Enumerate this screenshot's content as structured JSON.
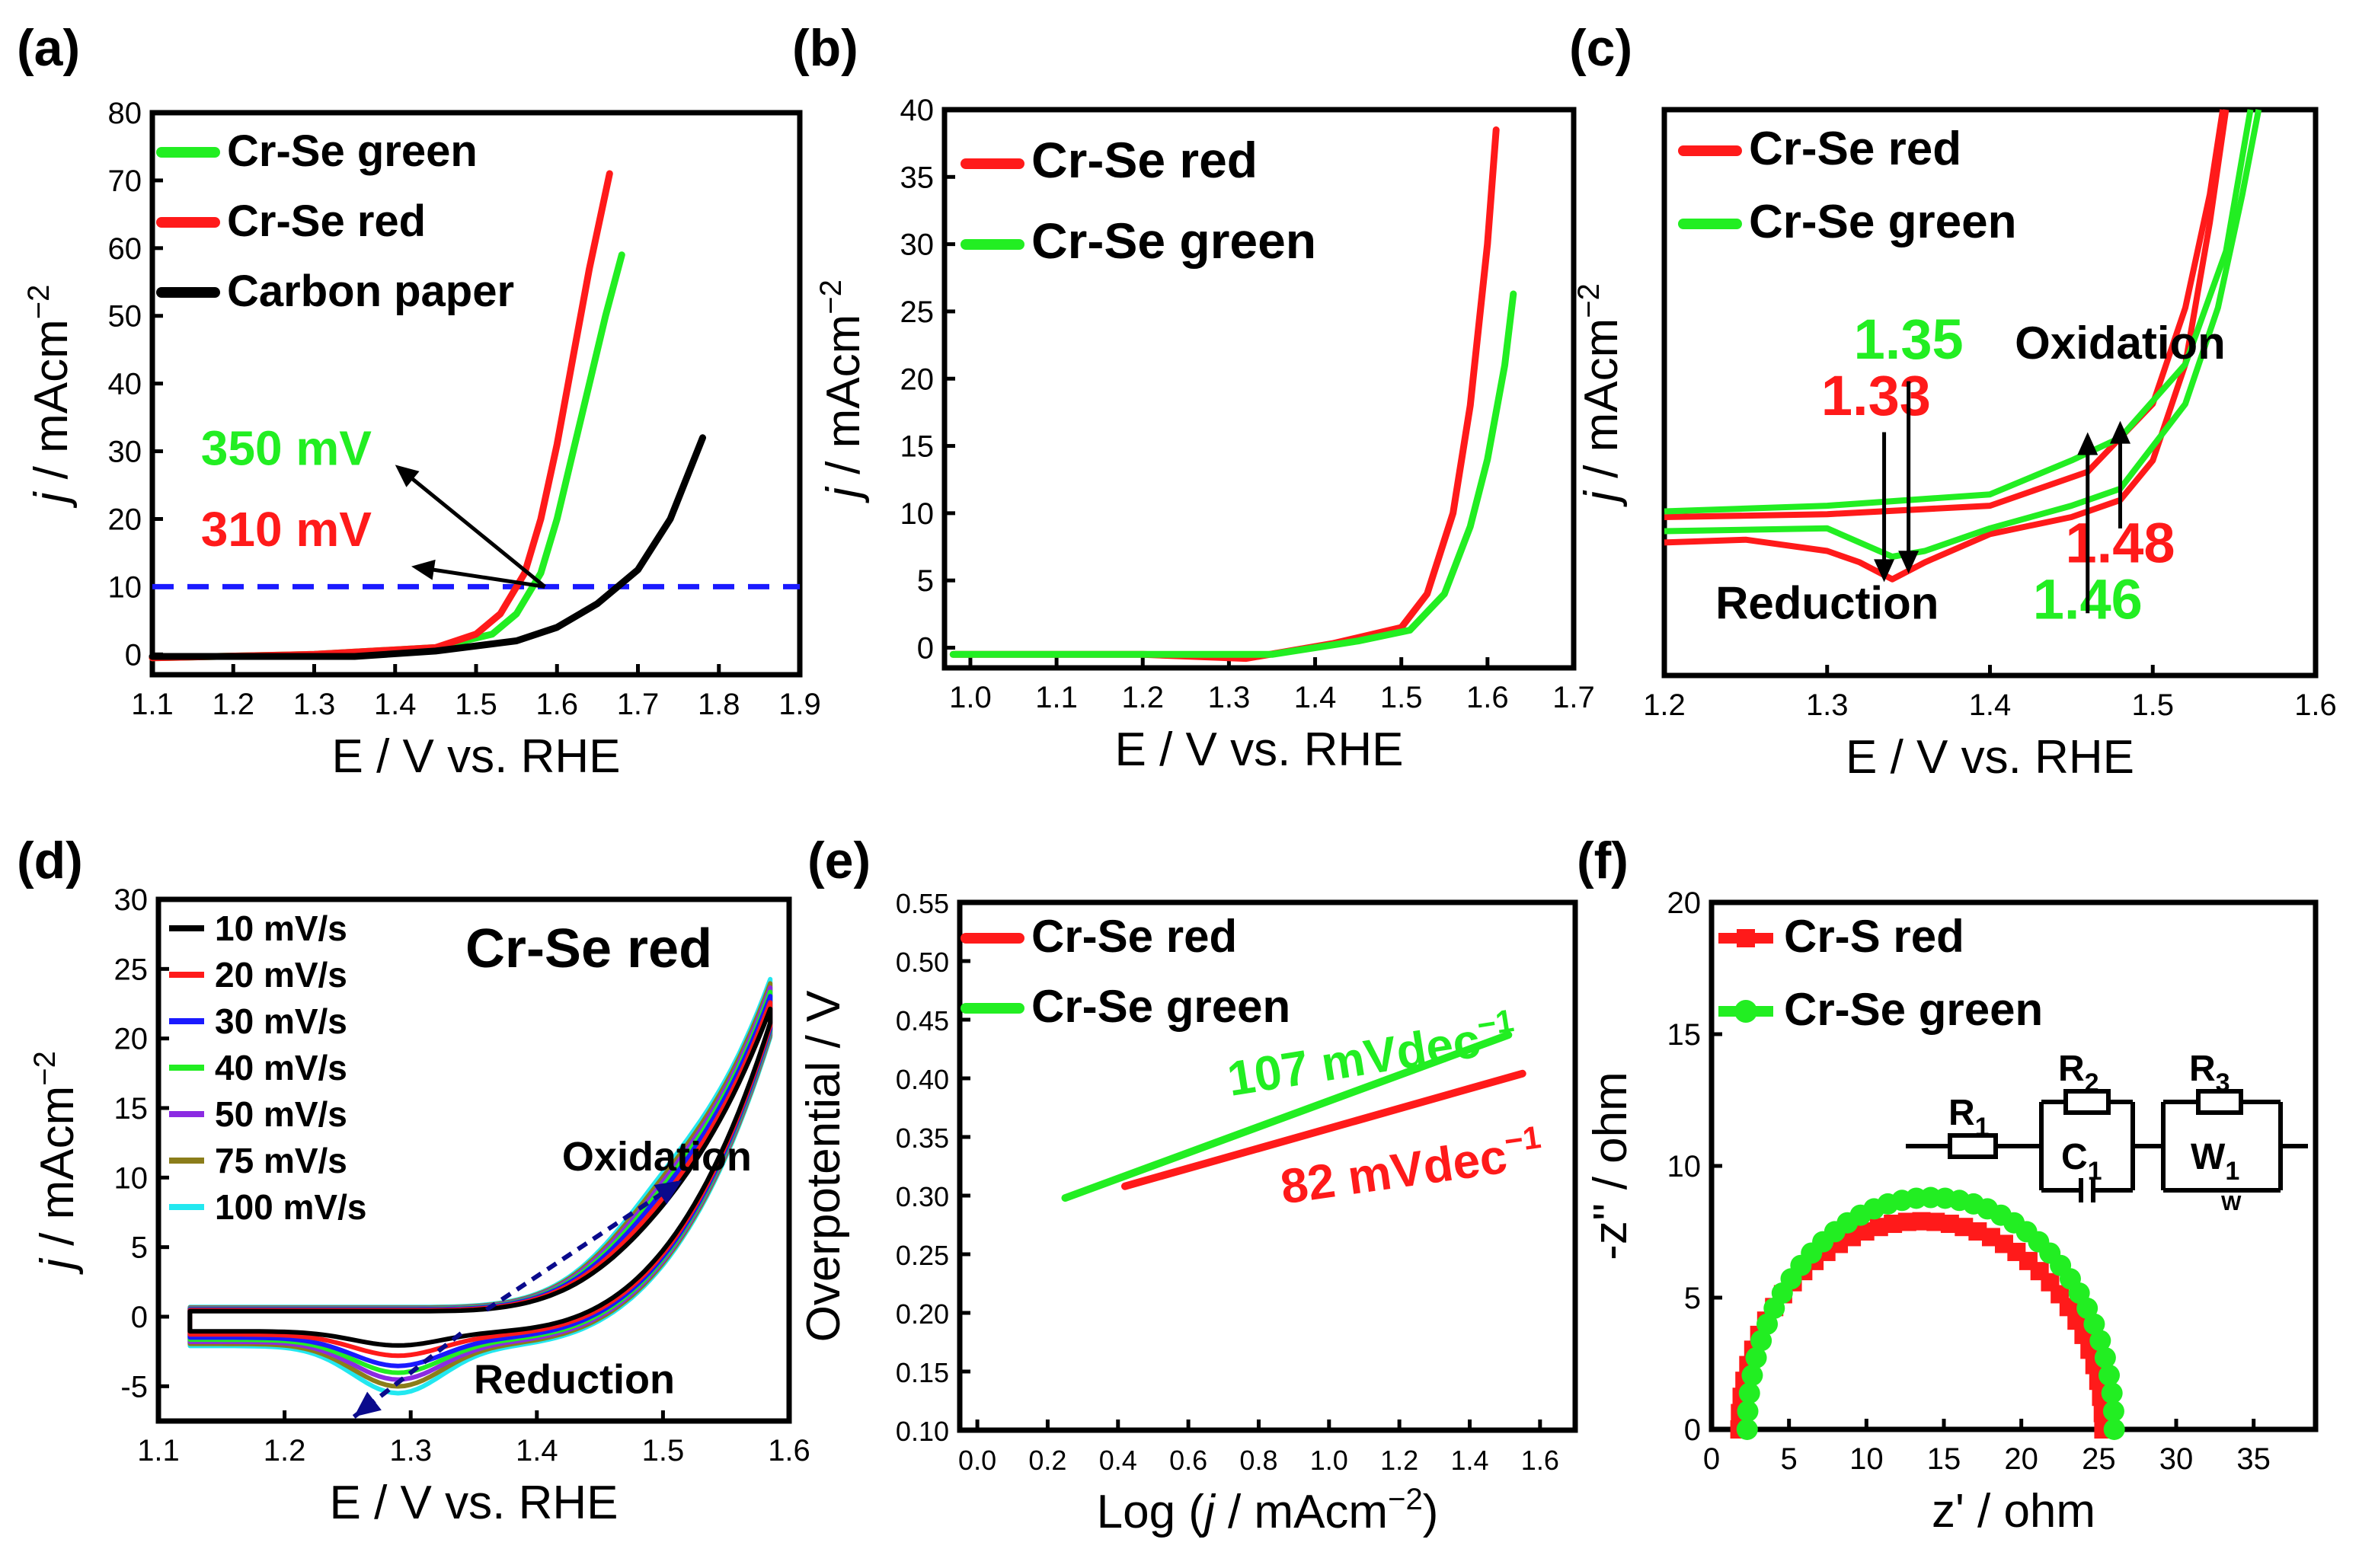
{
  "colors": {
    "red": "#ff1a1a",
    "green": "#22ee22",
    "black": "#000000",
    "blue": "#1a1aff",
    "navy": "#0a0a8c"
  },
  "chart_data": [
    {
      "panel": "(a)",
      "type": "line",
      "xlabel": "E / V vs. RHE",
      "ylabel": "j / mAcm−2",
      "ylabel_italic": "j",
      "ylabel_unit": " / mAcm",
      "ylabel_sup": "−2",
      "xlim": [
        1.1,
        1.9
      ],
      "ylim": [
        -3,
        80
      ],
      "xticks": [
        "1.1",
        "1.2",
        "1.3",
        "1.4",
        "1.5",
        "1.6",
        "1.7",
        "1.8",
        "1.9"
      ],
      "yticks": [
        "0",
        "10",
        "20",
        "30",
        "40",
        "50",
        "60",
        "70",
        "80"
      ],
      "xtick_values": [
        1.1,
        1.2,
        1.3,
        1.4,
        1.5,
        1.6,
        1.7,
        1.8,
        1.9
      ],
      "ytick_values": [
        0,
        10,
        20,
        30,
        40,
        50,
        60,
        70,
        80
      ],
      "legend_position": "top-left",
      "series": [
        {
          "name": "Cr-Se green",
          "color": "#22ee22",
          "x": [
            1.1,
            1.3,
            1.45,
            1.52,
            1.55,
            1.58,
            1.6,
            1.62,
            1.64,
            1.66,
            1.68
          ],
          "y": [
            -0.5,
            0,
            1,
            3,
            6,
            12,
            20,
            30,
            40,
            50,
            59
          ]
        },
        {
          "name": "Cr-Se red",
          "color": "#ff1a1a",
          "x": [
            1.1,
            1.3,
            1.45,
            1.5,
            1.53,
            1.56,
            1.58,
            1.6,
            1.62,
            1.64,
            1.665
          ],
          "y": [
            -0.5,
            0,
            1,
            3,
            6,
            12,
            20,
            31,
            44,
            57,
            71
          ]
        },
        {
          "name": "Carbon paper",
          "color": "#000000",
          "x": [
            1.1,
            1.35,
            1.45,
            1.55,
            1.6,
            1.65,
            1.7,
            1.74,
            1.78
          ],
          "y": [
            -0.3,
            -0.3,
            0.5,
            2,
            4,
            7.5,
            12.5,
            20,
            32
          ]
        }
      ],
      "hline": {
        "y": 10,
        "color": "#1a1aff",
        "style": "dashed"
      },
      "annotations": [
        {
          "text": "350 mV",
          "color": "#22ee22",
          "x": 1.16,
          "y": 28
        },
        {
          "text": "310 mV",
          "color": "#ff1a1a",
          "x": 1.16,
          "y": 16
        }
      ],
      "arrows": [
        {
          "from": [
            1.585,
            10
          ],
          "to": [
            1.4,
            28
          ]
        },
        {
          "from": [
            1.585,
            10
          ],
          "to": [
            1.42,
            13
          ]
        }
      ]
    },
    {
      "panel": "(b)",
      "type": "line",
      "xlabel": "E / V vs. RHE",
      "ylabel": "j / mAcm−2",
      "ylabel_italic": "j",
      "ylabel_unit": " / mAcm",
      "ylabel_sup": "−2",
      "xlim": [
        0.97,
        1.7
      ],
      "ylim": [
        -1.5,
        40
      ],
      "xticks": [
        "1.0",
        "1.1",
        "1.2",
        "1.3",
        "1.4",
        "1.5",
        "1.6",
        "1.7"
      ],
      "yticks": [
        "0",
        "5",
        "10",
        "15",
        "20",
        "25",
        "30",
        "35",
        "40"
      ],
      "xtick_values": [
        1.0,
        1.1,
        1.2,
        1.3,
        1.4,
        1.5,
        1.6,
        1.7
      ],
      "ytick_values": [
        0,
        5,
        10,
        15,
        20,
        25,
        30,
        35,
        40
      ],
      "legend_position": "top-left",
      "series": [
        {
          "name": "Cr-Se red",
          "color": "#ff1a1a",
          "x": [
            0.98,
            1.2,
            1.32,
            1.42,
            1.5,
            1.53,
            1.56,
            1.58,
            1.6,
            1.61
          ],
          "y": [
            -0.5,
            -0.5,
            -0.8,
            0.3,
            1.5,
            4,
            10,
            18,
            30,
            38.5
          ]
        },
        {
          "name": "Cr-Se green",
          "color": "#22ee22",
          "x": [
            0.98,
            1.2,
            1.35,
            1.45,
            1.51,
            1.55,
            1.58,
            1.6,
            1.62,
            1.63
          ],
          "y": [
            -0.5,
            -0.5,
            -0.5,
            0.5,
            1.3,
            4,
            9,
            14,
            21,
            26.3
          ]
        }
      ]
    },
    {
      "panel": "(c)",
      "type": "line",
      "xlabel": "E / V vs. RHE",
      "ylabel": "j / mAcm−2",
      "ylabel_italic": "j",
      "ylabel_unit": " / mAcm",
      "ylabel_sup": "−2",
      "xlim": [
        1.2,
        1.6
      ],
      "ylim": [
        0,
        10
      ],
      "xticks": [
        "1.2",
        "1.3",
        "1.4",
        "1.5",
        "1.6"
      ],
      "yticks": [],
      "xtick_values": [
        1.2,
        1.3,
        1.4,
        1.5,
        1.6
      ],
      "ytick_values": [],
      "legend_position": "top-left",
      "series": [
        {
          "name": "Cr-Se red",
          "color": "#ff1a1a",
          "x": [
            1.2,
            1.25,
            1.3,
            1.32,
            1.34,
            1.36,
            1.4,
            1.45,
            1.48,
            1.5,
            1.52,
            1.535,
            1.545,
            1.2,
            1.3,
            1.4,
            1.46,
            1.5,
            1.52,
            1.535,
            1.543
          ],
          "y": [
            2.35,
            2.4,
            2.2,
            2.0,
            1.7,
            2.0,
            2.5,
            2.8,
            3.1,
            3.8,
            5.5,
            8.0,
            10.0,
            2.8,
            2.85,
            3.0,
            3.6,
            4.8,
            6.5,
            8.5,
            10.0
          ]
        },
        {
          "name": "Cr-Se green",
          "color": "#22ee22",
          "x": [
            1.2,
            1.3,
            1.34,
            1.36,
            1.4,
            1.45,
            1.48,
            1.52,
            1.54,
            1.555,
            1.565,
            1.2,
            1.3,
            1.4,
            1.45,
            1.48,
            1.52,
            1.545,
            1.56
          ],
          "y": [
            2.55,
            2.6,
            2.1,
            2.2,
            2.6,
            3.0,
            3.3,
            4.8,
            6.5,
            8.5,
            10.0,
            2.9,
            3.0,
            3.2,
            3.8,
            4.2,
            5.5,
            7.5,
            10.0
          ]
        }
      ],
      "annotations": [
        {
          "text": "1.35",
          "color": "#22ee22",
          "x": 1.35,
          "y": 5.6
        },
        {
          "text": "1.33",
          "color": "#ff1a1a",
          "x": 1.33,
          "y": 4.6
        },
        {
          "text": "Oxidation",
          "color": "#000000",
          "x": 1.48,
          "y": 5.6
        },
        {
          "text": "1.48",
          "color": "#ff1a1a",
          "x": 1.48,
          "y": 2.0
        },
        {
          "text": "1.46",
          "color": "#22ee22",
          "x": 1.46,
          "y": 1.0
        },
        {
          "text": "Reduction",
          "color": "#000000",
          "x": 1.3,
          "y": 1.0
        }
      ],
      "arrows": [
        {
          "from": [
            1.335,
            4.3
          ],
          "to": [
            1.335,
            1.65
          ]
        },
        {
          "from": [
            1.35,
            5.2
          ],
          "to": [
            1.35,
            1.8
          ]
        },
        {
          "from": [
            1.46,
            1.1
          ],
          "to": [
            1.46,
            4.3
          ]
        },
        {
          "from": [
            1.48,
            2.6
          ],
          "to": [
            1.48,
            4.5
          ]
        }
      ]
    },
    {
      "panel": "(d)",
      "type": "line",
      "title": "Cr-Se red",
      "xlabel": "E / V vs. RHE",
      "ylabel": "j / mAcm−2",
      "ylabel_italic": "j",
      "ylabel_unit": " / mAcm",
      "ylabel_sup": "−2",
      "xlim": [
        1.1,
        1.6
      ],
      "ylim": [
        -7.5,
        30
      ],
      "xticks": [
        "1.1",
        "1.2",
        "1.3",
        "1.4",
        "1.5",
        "1.6"
      ],
      "yticks": [
        "-5",
        "0",
        "5",
        "10",
        "15",
        "20",
        "25",
        "30"
      ],
      "xtick_values": [
        1.1,
        1.2,
        1.3,
        1.4,
        1.5,
        1.6
      ],
      "ytick_values": [
        -5,
        0,
        5,
        10,
        15,
        20,
        25,
        30
      ],
      "legend_position": "top-left",
      "series": [
        {
          "name": "10 mV/s",
          "color": "#000000",
          "scale": 0.3
        },
        {
          "name": "20 mV/s",
          "color": "#ff1a1a",
          "scale": 0.45
        },
        {
          "name": "30 mV/s",
          "color": "#1a1aff",
          "scale": 0.6
        },
        {
          "name": "40 mV/s",
          "color": "#22ee22",
          "scale": 0.7
        },
        {
          "name": "50 mV/s",
          "color": "#8b2be2",
          "scale": 0.8
        },
        {
          "name": "75 mV/s",
          "color": "#8b7d1a",
          "scale": 0.9
        },
        {
          "name": "100 mV/s",
          "color": "#22e8f0",
          "scale": 1.0
        }
      ],
      "annotations": [
        {
          "text": "Oxidation",
          "color": "#000000",
          "x": 1.42,
          "y": 10.5
        },
        {
          "text": "Reduction",
          "color": "#000000",
          "x": 1.35,
          "y": -5.5
        }
      ],
      "arrows": [
        {
          "from": [
            1.36,
            0.5
          ],
          "to": [
            1.515,
            9.8
          ],
          "style": "dashed"
        },
        {
          "from": [
            1.34,
            -1.2
          ],
          "to": [
            1.255,
            -7.2
          ],
          "style": "dashed"
        }
      ]
    },
    {
      "panel": "(e)",
      "type": "line",
      "xlabel": "Log (j / mAcm−2)",
      "ylabel": "Overpotential / V",
      "xlabel_pre": "Log (",
      "xlabel_italic": "j",
      "xlabel_unit": " / mAcm",
      "xlabel_sup": "−2",
      "xlabel_post": ")",
      "xlim": [
        -0.05,
        1.7
      ],
      "ylim": [
        0.1,
        0.55
      ],
      "xticks": [
        "0.0",
        "0.2",
        "0.4",
        "0.6",
        "0.8",
        "1.0",
        "1.2",
        "1.4",
        "1.6"
      ],
      "yticks": [
        "0.10",
        "0.15",
        "0.20",
        "0.25",
        "0.30",
        "0.35",
        "0.40",
        "0.45",
        "0.50",
        "0.55"
      ],
      "xtick_values": [
        0.0,
        0.2,
        0.4,
        0.6,
        0.8,
        1.0,
        1.2,
        1.4,
        1.6
      ],
      "ytick_values": [
        0.1,
        0.15,
        0.2,
        0.25,
        0.3,
        0.35,
        0.4,
        0.45,
        0.5,
        0.55
      ],
      "legend_position": "top-left",
      "series": [
        {
          "name": "Cr-Se red",
          "color": "#ff1a1a",
          "x": [
            0.42,
            1.55
          ],
          "y": [
            0.308,
            0.404
          ]
        },
        {
          "name": "Cr-Se green",
          "color": "#22ee22",
          "x": [
            0.25,
            1.51
          ],
          "y": [
            0.298,
            0.437
          ]
        }
      ],
      "annotations": [
        {
          "text": "107 mVdec",
          "sup": "−1",
          "color": "#22ee22",
          "x": 0.72,
          "y": 0.385
        },
        {
          "text": "82 mVdec",
          "sup": "−1",
          "color": "#ff1a1a",
          "x": 0.87,
          "y": 0.293
        }
      ]
    },
    {
      "panel": "(f)",
      "type": "scatter",
      "xlabel": "z' / ohm",
      "ylabel": "-z'' / ohm",
      "xlim": [
        0,
        39
      ],
      "ylim": [
        0,
        20
      ],
      "xticks": [
        "0",
        "5",
        "10",
        "15",
        "20",
        "25",
        "30",
        "35"
      ],
      "yticks": [
        "0",
        "5",
        "10",
        "15",
        "20"
      ],
      "xtick_values": [
        0,
        5,
        10,
        15,
        20,
        25,
        30,
        35
      ],
      "ytick_values": [
        0,
        5,
        10,
        15,
        20
      ],
      "legend_position": "top-left",
      "series": [
        {
          "name": "Cr-S red",
          "color": "#ff1a1a",
          "marker": "square",
          "rs": 1.8,
          "rct": 23.5,
          "peak": 7.9
        },
        {
          "name": "Cr-Se green",
          "color": "#22ee22",
          "marker": "circle",
          "rs": 2.3,
          "rct": 23.7,
          "peak": 8.8
        }
      ],
      "circuit": {
        "r1": "R",
        "r1_sub": "1",
        "r2": "R",
        "r2_sub": "2",
        "c1": "C",
        "c1_sub": "1",
        "r3": "R",
        "r3_sub": "3",
        "w1": "W",
        "w1_sub": "1",
        "w_label": "W"
      }
    }
  ]
}
